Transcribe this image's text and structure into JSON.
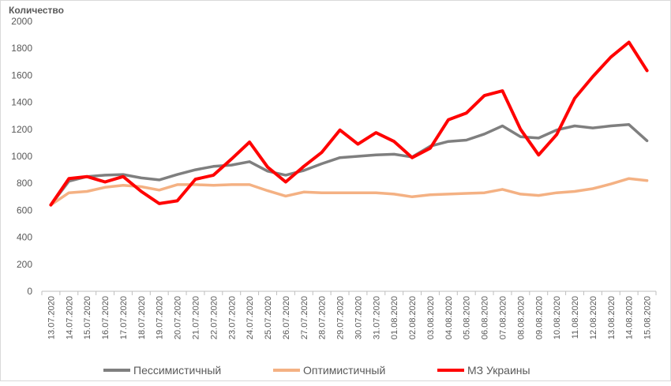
{
  "chart_data": {
    "type": "line",
    "ylabel": "Количество",
    "ylim": [
      0,
      2000
    ],
    "yticks": [
      0,
      200,
      400,
      600,
      800,
      1000,
      1200,
      1400,
      1600,
      1800,
      2000
    ],
    "grid": false,
    "legend_position": "bottom",
    "categories": [
      "13.07.2020",
      "14.07.2020",
      "15.07.2020",
      "16.07.2020",
      "17.07.2020",
      "18.07.2020",
      "19.07.2020",
      "20.07.2020",
      "21.07.2020",
      "22.07.2020",
      "23.07.2020",
      "24.07.2020",
      "25.07.2020",
      "26.07.2020",
      "27.07.2020",
      "28.07.2020",
      "29.07.2020",
      "30.07.2020",
      "31.07.2020",
      "01.08.2020",
      "02.08.2020",
      "03.08.2020",
      "04.08.2020",
      "05.08.2020",
      "06.08.2020",
      "07.08.2020",
      "08.08.2020",
      "09.08.2020",
      "10.08.2020",
      "11.08.2020",
      "12.08.2020",
      "13.08.2020",
      "14.08.2020",
      "15.08.2020"
    ],
    "series": [
      {
        "name": "Пессимистичный",
        "color": "#7f7f7f",
        "values": [
          640,
          815,
          850,
          860,
          865,
          840,
          825,
          865,
          900,
          925,
          935,
          960,
          890,
          860,
          895,
          945,
          990,
          1000,
          1010,
          1015,
          995,
          1075,
          1110,
          1120,
          1165,
          1225,
          1145,
          1135,
          1195,
          1225,
          1210,
          1225,
          1235,
          1115
        ]
      },
      {
        "name": "Оптимистичный",
        "color": "#f4b183",
        "values": [
          640,
          730,
          740,
          770,
          785,
          775,
          750,
          790,
          790,
          785,
          790,
          790,
          745,
          705,
          735,
          730,
          730,
          730,
          730,
          720,
          700,
          715,
          720,
          725,
          730,
          755,
          720,
          710,
          730,
          740,
          760,
          795,
          835,
          820
        ]
      },
      {
        "name": "МЗ Украины",
        "color": "#ff0000",
        "values": [
          640,
          835,
          850,
          810,
          850,
          740,
          650,
          670,
          830,
          860,
          980,
          1105,
          920,
          810,
          925,
          1030,
          1195,
          1090,
          1175,
          1110,
          990,
          1060,
          1270,
          1320,
          1450,
          1485,
          1200,
          1010,
          1160,
          1430,
          1590,
          1735,
          1845,
          1635
        ]
      }
    ]
  }
}
